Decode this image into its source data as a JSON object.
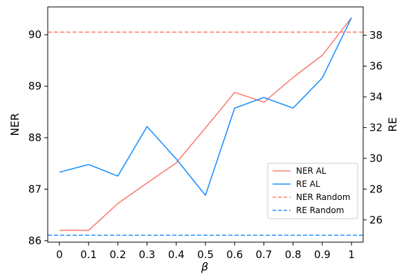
{
  "chart_data": {
    "type": "line",
    "x": [
      0,
      0.1,
      0.2,
      0.3,
      0.4,
      0.5,
      0.6,
      0.7,
      0.8,
      0.9,
      1
    ],
    "x_tick_labels": [
      "0",
      "0.1",
      "0.2",
      "0.3",
      "0.4",
      "0.5",
      "0.6",
      "0.7",
      "0.8",
      "0.9",
      "1"
    ],
    "xlabel": "β",
    "ylabel_left": "NER",
    "ylabel_right": "RE",
    "ylim_left": [
      85.97,
      90.54
    ],
    "ylim_right": [
      24.55,
      39.85
    ],
    "yticks_left": [
      86,
      87,
      88,
      89,
      90
    ],
    "yticks_right": [
      26,
      28,
      30,
      32,
      34,
      36,
      38
    ],
    "series": [
      {
        "name": "NER AL",
        "axis": "left",
        "style": "solid",
        "color": "#FA8072",
        "values": [
          86.2,
          86.2,
          86.72,
          87.12,
          87.51,
          88.19,
          88.88,
          88.69,
          89.17,
          89.6,
          90.33
        ]
      },
      {
        "name": "RE AL",
        "axis": "right",
        "style": "solid",
        "color": "#1E90FF",
        "values": [
          29.1,
          29.6,
          28.85,
          32.07,
          29.96,
          27.6,
          33.27,
          33.96,
          33.27,
          35.23,
          39.15
        ]
      },
      {
        "name": "NER Random",
        "axis": "left",
        "style": "dashed",
        "color": "#FA8072",
        "constant": 90.05
      },
      {
        "name": "RE Random",
        "axis": "right",
        "style": "dashed",
        "color": "#1E90FF",
        "constant": 25.0
      }
    ],
    "legend_position": "lower-right",
    "grid": false
  }
}
